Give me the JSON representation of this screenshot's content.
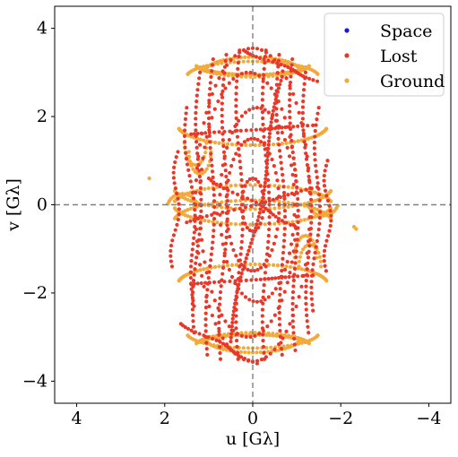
{
  "chart_data": {
    "type": "scatter",
    "xlabel": "u [Gλ]",
    "ylabel": "v [Gλ]",
    "xlim": [
      4.5,
      -4.5
    ],
    "ylim": [
      -4.5,
      4.5
    ],
    "x_reversed": true,
    "xticks": [
      4,
      2,
      0,
      -2,
      -4
    ],
    "yticks": [
      -4,
      -2,
      0,
      2,
      4
    ],
    "xtick_labels": [
      "4",
      "2",
      "0",
      "−2",
      "−4"
    ],
    "ytick_labels": [
      "−4",
      "−2",
      "0",
      "2",
      "4"
    ],
    "reference_lines": [
      {
        "axis": "x",
        "value": 0
      },
      {
        "axis": "y",
        "value": 0
      }
    ],
    "legend": {
      "position": "top-right"
    },
    "series": [
      {
        "name": "Space",
        "color": "#1a1ad6",
        "points": []
      },
      {
        "name": "Lost",
        "color": "#e8382a",
        "tracks": [
          {
            "a": 1.3,
            "b": 3.55,
            "cx": 0.0,
            "cy": 0.0,
            "t0": 0,
            "t1": 360,
            "n": 80
          },
          {
            "a": 1.1,
            "b": 3.0,
            "cx": 0.1,
            "cy": 0.0,
            "t0": 0,
            "t1": 360,
            "n": 70
          },
          {
            "a": 0.85,
            "b": 2.2,
            "cx": -0.1,
            "cy": 0.0,
            "t0": 0,
            "t1": 360,
            "n": 60
          },
          {
            "a": 0.6,
            "b": 1.5,
            "cx": 0.0,
            "cy": 0.0,
            "t0": 0,
            "t1": 360,
            "n": 50
          },
          {
            "a": 0.25,
            "b": 0.6,
            "cx": 0.0,
            "cy": 0.0,
            "t0": 0,
            "t1": 360,
            "n": 24
          }
        ],
        "segments": [
          {
            "from": [
              0.9,
              3.3
            ],
            "to": [
              1.0,
              -3.4
            ],
            "n": 50
          },
          {
            "from": [
              0.6,
              3.4
            ],
            "to": [
              0.7,
              -3.5
            ],
            "n": 50
          },
          {
            "from": [
              0.3,
              3.5
            ],
            "to": [
              0.3,
              -3.5
            ],
            "n": 50
          },
          {
            "from": [
              -0.3,
              3.5
            ],
            "to": [
              -0.3,
              -3.5
            ],
            "n": 50
          },
          {
            "from": [
              -0.6,
              3.4
            ],
            "to": [
              -0.7,
              -3.4
            ],
            "n": 50
          },
          {
            "from": [
              -0.9,
              3.3
            ],
            "to": [
              -1.0,
              -3.3
            ],
            "n": 50
          },
          {
            "from": [
              -1.2,
              3.0
            ],
            "to": [
              -1.3,
              -2.9
            ],
            "n": 45
          },
          {
            "from": [
              1.2,
              3.0
            ],
            "to": [
              1.3,
              -2.9
            ],
            "n": 45
          },
          {
            "from": [
              0.5,
              -3.1
            ],
            "to": [
              -0.7,
              2.9
            ],
            "n": 70
          },
          {
            "from": [
              1.5,
              2.2
            ],
            "to": [
              1.3,
              -2.3
            ],
            "n": 35
          },
          {
            "from": [
              -1.5,
              2.2
            ],
            "to": [
              -1.4,
              -2.4
            ],
            "n": 35
          },
          {
            "from": [
              1.7,
              1.2
            ],
            "to": [
              1.8,
              -1.4
            ],
            "n": 22
          },
          {
            "from": [
              -1.7,
              1.0
            ],
            "to": [
              -1.7,
              -1.5
            ],
            "n": 22
          },
          {
            "from": [
              0.2,
              3.5
            ],
            "to": [
              -1.5,
              2.8
            ],
            "n": 24
          },
          {
            "from": [
              -0.1,
              -3.6
            ],
            "to": [
              1.6,
              -2.7
            ],
            "n": 24
          },
          {
            "from": [
              1.0,
              0.6
            ],
            "to": [
              -1.0,
              -0.5
            ],
            "n": 24
          },
          {
            "from": [
              1.4,
              -1.8
            ],
            "to": [
              -1.4,
              -1.6
            ],
            "n": 28
          },
          {
            "from": [
              1.4,
              1.6
            ],
            "to": [
              -1.4,
              1.8
            ],
            "n": 28
          },
          {
            "from": [
              1.5,
              -0.4
            ],
            "to": [
              -1.5,
              0.4
            ],
            "n": 28
          }
        ]
      },
      {
        "name": "Ground",
        "color": "#f2aa3c",
        "arcs": [
          {
            "cx": 0.0,
            "cy": 3.2,
            "rx": 1.3,
            "ry": 0.25,
            "t0": 200,
            "t1": 340,
            "n": 40
          },
          {
            "cx": 0.0,
            "cy": 3.0,
            "rx": 1.1,
            "ry": 0.35,
            "t0": 20,
            "t1": 160,
            "n": 30
          },
          {
            "cx": 0.0,
            "cy": 1.8,
            "rx": 1.7,
            "ry": 0.45,
            "t0": 190,
            "t1": 350,
            "n": 45
          },
          {
            "cx": 0.0,
            "cy": 0.0,
            "rx": 1.8,
            "ry": 0.45,
            "t0": 190,
            "t1": 350,
            "n": 45
          },
          {
            "cx": 0.0,
            "cy": -0.4,
            "rx": 1.8,
            "ry": 0.5,
            "t0": 10,
            "t1": 170,
            "n": 45
          },
          {
            "cx": 0.0,
            "cy": -1.8,
            "rx": 1.7,
            "ry": 0.45,
            "t0": 10,
            "t1": 170,
            "n": 45
          },
          {
            "cx": 0.0,
            "cy": -2.9,
            "rx": 1.5,
            "ry": 0.35,
            "t0": 190,
            "t1": 350,
            "n": 40
          },
          {
            "cx": 0.0,
            "cy": -3.2,
            "rx": 1.3,
            "ry": 0.3,
            "t0": 10,
            "t1": 170,
            "n": 35
          },
          {
            "cx": -1.2,
            "cy": -1.2,
            "rx": 0.25,
            "ry": 0.5,
            "t0": 0,
            "t1": 180,
            "n": 14
          },
          {
            "cx": 1.3,
            "cy": 1.4,
            "rx": 0.25,
            "ry": 0.5,
            "t0": 180,
            "t1": 360,
            "n": 14
          },
          {
            "cx": -1.6,
            "cy": 0.1,
            "rx": 0.35,
            "ry": 0.35,
            "t0": 200,
            "t1": 340,
            "n": 12
          },
          {
            "cx": 1.6,
            "cy": -0.1,
            "rx": 0.35,
            "ry": 0.35,
            "t0": 20,
            "t1": 160,
            "n": 12
          }
        ],
        "points": [
          [
            2.35,
            0.6
          ],
          [
            -2.35,
            -0.55
          ],
          [
            -2.3,
            -0.5
          ]
        ]
      }
    ]
  }
}
